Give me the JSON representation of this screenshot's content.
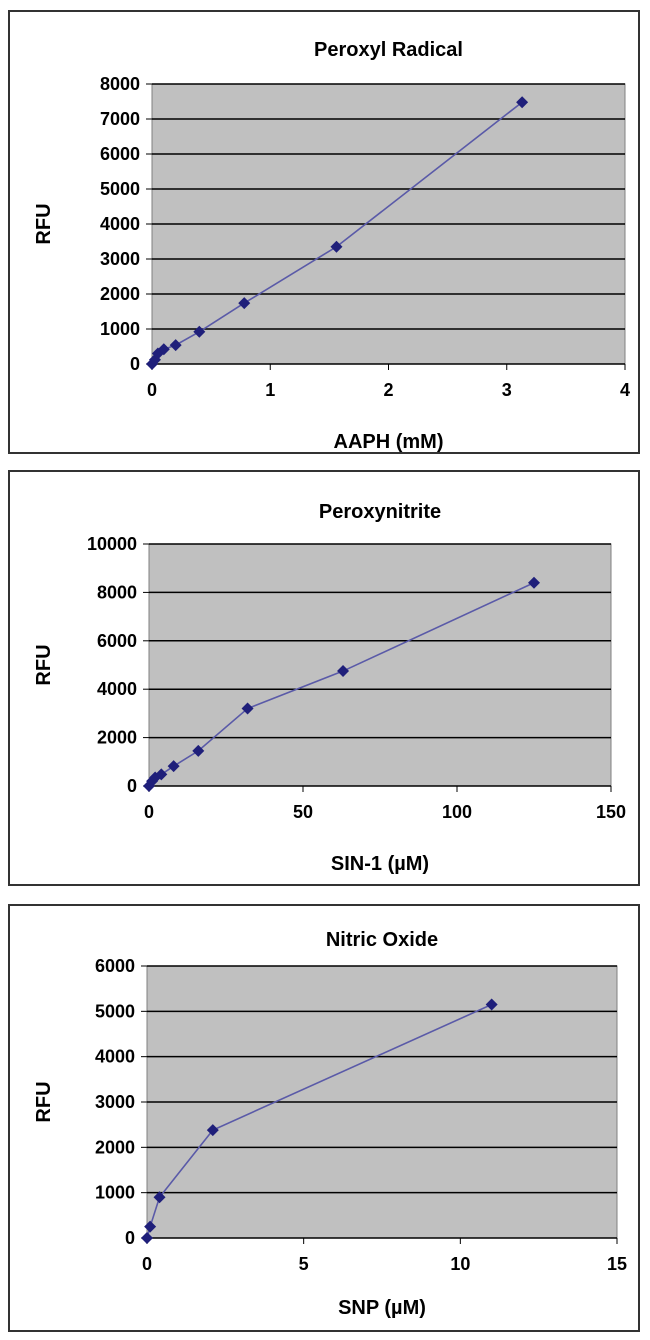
{
  "chart_data": [
    {
      "type": "line",
      "title": "Peroxyl Radical",
      "xlabel": "AAPH (mM)",
      "ylabel": "RFU",
      "xlim": [
        0,
        4
      ],
      "ylim": [
        0,
        8000
      ],
      "xticks": [
        "0",
        "1",
        "2",
        "3",
        "4"
      ],
      "yticks": [
        "0",
        "1000",
        "2000",
        "3000",
        "4000",
        "5000",
        "6000",
        "7000",
        "8000"
      ],
      "grid": true,
      "plot_background": "#c0c0c0",
      "series_color": "#1f1f7a",
      "series": [
        {
          "x": [
            0,
            0.025,
            0.05,
            0.1,
            0.2,
            0.4,
            0.78,
            1.56,
            3.13
          ],
          "y": [
            0,
            120,
            300,
            420,
            540,
            920,
            1740,
            3350,
            7480
          ]
        }
      ]
    },
    {
      "type": "line",
      "title": "Peroxynitrite",
      "xlabel": "SIN-1 (µM)",
      "ylabel": "RFU",
      "xlim": [
        0,
        150
      ],
      "ylim": [
        0,
        10000
      ],
      "xticks": [
        "0",
        "50",
        "100",
        "150"
      ],
      "yticks": [
        "0",
        "2000",
        "4000",
        "6000",
        "8000",
        "10000"
      ],
      "grid": true,
      "plot_background": "#c0c0c0",
      "series_color": "#1f1f7a",
      "series": [
        {
          "x": [
            0,
            1,
            2,
            4,
            8,
            16,
            32,
            63,
            125
          ],
          "y": [
            0,
            200,
            350,
            480,
            820,
            1450,
            3200,
            4750,
            8400
          ]
        }
      ]
    },
    {
      "type": "line",
      "title": "Nitric Oxide",
      "xlabel": "SNP (µM)",
      "ylabel": "RFU",
      "xlim": [
        0,
        15
      ],
      "ylim": [
        0,
        6000
      ],
      "xticks": [
        "0",
        "5",
        "10",
        "15"
      ],
      "yticks": [
        "0",
        "1000",
        "2000",
        "3000",
        "4000",
        "5000",
        "6000"
      ],
      "grid": true,
      "plot_background": "#c0c0c0",
      "series_color": "#1f1f7a",
      "series": [
        {
          "x": [
            0,
            0.1,
            0.4,
            2.1,
            11
          ],
          "y": [
            0,
            250,
            900,
            2380,
            5150
          ]
        }
      ]
    }
  ]
}
